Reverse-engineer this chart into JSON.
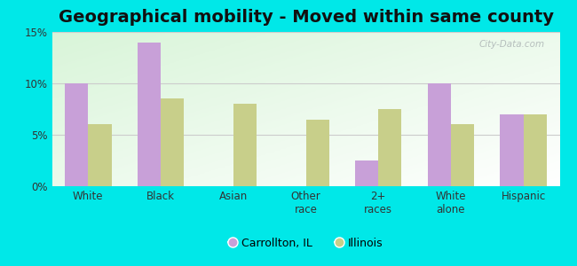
{
  "title": "Geographical mobility - Moved within same county",
  "categories": [
    "White",
    "Black",
    "Asian",
    "Other\nrace",
    "2+\nraces",
    "White\nalone",
    "Hispanic"
  ],
  "carrollton": [
    10.0,
    14.0,
    0.0,
    0.0,
    2.5,
    10.0,
    7.0
  ],
  "illinois": [
    6.0,
    8.5,
    8.0,
    6.5,
    7.5,
    6.0,
    7.0
  ],
  "carrollton_color": "#c8a0d8",
  "illinois_color": "#c8cf8a",
  "background_outer": "#00e8e8",
  "bar_width": 0.32,
  "ylim": [
    0,
    15
  ],
  "yticks": [
    0,
    5,
    10,
    15
  ],
  "ytick_labels": [
    "0%",
    "5%",
    "10%",
    "15%"
  ],
  "legend_carrollton": "Carrollton, IL",
  "legend_illinois": "Illinois",
  "title_fontsize": 14,
  "watermark": "City-Data.com"
}
